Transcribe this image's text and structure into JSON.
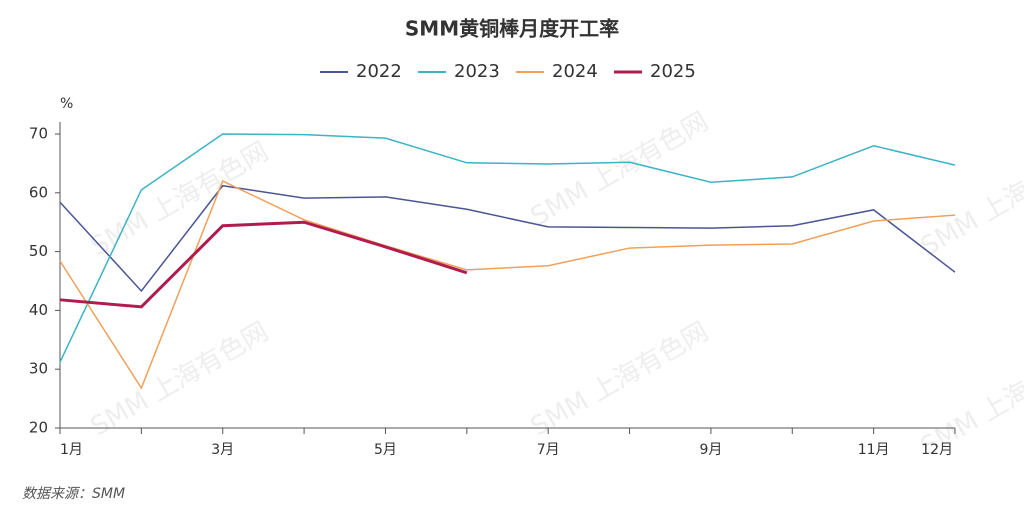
{
  "chart_data": {
    "type": "line",
    "title": "SMM黄铜棒月度开工率",
    "y_label": "%",
    "source": "数据来源：SMM",
    "watermark": "SMM 上海有色网",
    "categories": [
      "1月",
      null,
      "3月",
      null,
      "5月",
      null,
      "7月",
      null,
      "9月",
      null,
      "11月",
      "12月"
    ],
    "series": [
      {
        "name": "2022",
        "color": "#4a5694",
        "values": [
          58.4,
          43.3,
          61.2,
          59.1,
          59.3,
          57.2,
          54.2,
          54.1,
          54.0,
          54.4,
          57.1,
          46.5
        ]
      },
      {
        "name": "2023",
        "color": "#3bb4c4",
        "values": [
          31.2,
          60.5,
          70.0,
          69.9,
          69.3,
          65.1,
          64.9,
          65.2,
          61.8,
          62.7,
          68.0,
          64.7
        ]
      },
      {
        "name": "2024",
        "color": "#f0a05a",
        "values": [
          48.4,
          26.8,
          62.0,
          55.4,
          51.0,
          46.9,
          47.6,
          50.6,
          51.1,
          51.3,
          55.2,
          56.2
        ]
      },
      {
        "name": "2025",
        "color": "#b01c4c",
        "values": [
          41.8,
          40.6,
          54.4,
          55.0,
          50.8,
          46.4,
          null,
          null,
          null,
          null,
          null,
          null
        ]
      }
    ],
    "ylim": [
      20,
      70
    ],
    "yticks": [
      20,
      30,
      40,
      50,
      60,
      70
    ],
    "grid": false,
    "legend": "top"
  }
}
